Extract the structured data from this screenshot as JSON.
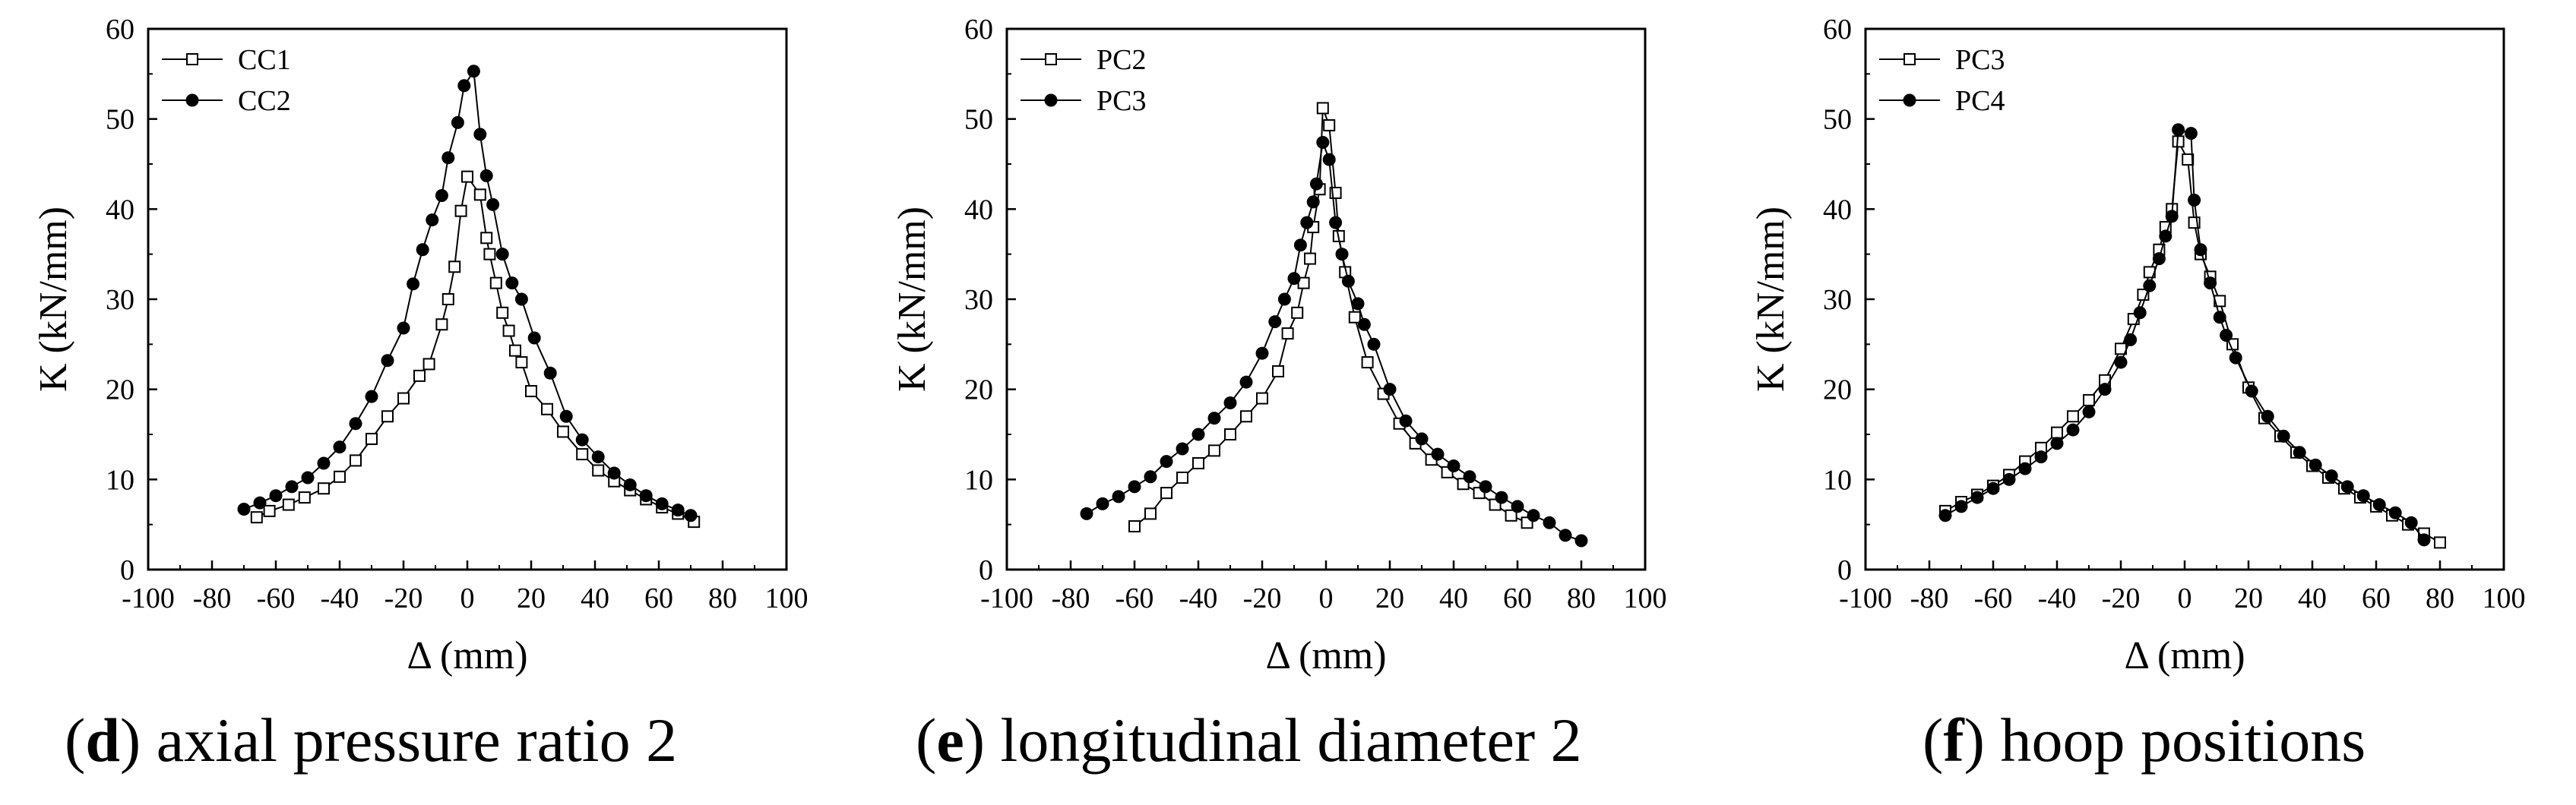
{
  "panels": [
    {
      "caption": {
        "letter": "d",
        "text": "axial pressure ratio 2"
      },
      "chart_data": {
        "type": "scatter",
        "title": "",
        "xlabel": "Δ (mm)",
        "ylabel": "K (kN/mm)",
        "xlim": [
          -100,
          100
        ],
        "ylim": [
          0,
          60
        ],
        "xticks": [
          -100,
          -80,
          -60,
          -40,
          -20,
          0,
          20,
          40,
          60,
          80,
          100
        ],
        "yticks": [
          0,
          10,
          20,
          30,
          40,
          50,
          60
        ],
        "legend_position": "top-left",
        "series": [
          {
            "name": "CC1",
            "marker": "open-square",
            "points": [
              [
                -66,
                5.8
              ],
              [
                -62,
                6.5
              ],
              [
                -56,
                7.2
              ],
              [
                -51,
                8.0
              ],
              [
                -45,
                9.0
              ],
              [
                -40,
                10.3
              ],
              [
                -35,
                12.1
              ],
              [
                -30,
                14.5
              ],
              [
                -25,
                17.0
              ],
              [
                -20,
                19.0
              ],
              [
                -15,
                21.5
              ],
              [
                -12,
                22.8
              ],
              [
                -8,
                27.2
              ],
              [
                -6,
                30.0
              ],
              [
                -4,
                33.6
              ],
              [
                -2,
                39.8
              ],
              [
                0,
                43.6
              ],
              [
                4,
                41.6
              ],
              [
                6,
                36.8
              ],
              [
                7,
                35.0
              ],
              [
                9,
                31.8
              ],
              [
                11,
                28.5
              ],
              [
                13,
                26.5
              ],
              [
                15,
                24.3
              ],
              [
                17,
                23.0
              ],
              [
                20,
                19.8
              ],
              [
                25,
                17.8
              ],
              [
                30,
                15.3
              ],
              [
                36,
                12.8
              ],
              [
                41,
                11.0
              ],
              [
                46,
                9.8
              ],
              [
                51,
                8.8
              ],
              [
                56,
                7.8
              ],
              [
                61,
                6.9
              ],
              [
                66,
                6.2
              ],
              [
                71,
                5.3
              ]
            ]
          },
          {
            "name": "CC2",
            "marker": "filled-circle",
            "points": [
              [
                -70,
                6.7
              ],
              [
                -65,
                7.4
              ],
              [
                -60,
                8.2
              ],
              [
                -55,
                9.2
              ],
              [
                -50,
                10.2
              ],
              [
                -45,
                11.8
              ],
              [
                -40,
                13.6
              ],
              [
                -35,
                16.2
              ],
              [
                -30,
                19.2
              ],
              [
                -25,
                23.2
              ],
              [
                -20,
                26.8
              ],
              [
                -17,
                31.7
              ],
              [
                -14,
                35.5
              ],
              [
                -11,
                38.8
              ],
              [
                -8,
                41.5
              ],
              [
                -6,
                45.7
              ],
              [
                -3,
                49.6
              ],
              [
                -1,
                53.7
              ],
              [
                2,
                55.3
              ],
              [
                4,
                48.3
              ],
              [
                6,
                43.7
              ],
              [
                8,
                40.5
              ],
              [
                11,
                35.0
              ],
              [
                14,
                31.8
              ],
              [
                17,
                30.0
              ],
              [
                21,
                25.7
              ],
              [
                26,
                21.8
              ],
              [
                31,
                17.0
              ],
              [
                36,
                14.4
              ],
              [
                41,
                12.5
              ],
              [
                46,
                10.7
              ],
              [
                51,
                9.4
              ],
              [
                56,
                8.2
              ],
              [
                61,
                7.3
              ],
              [
                66,
                6.6
              ],
              [
                70,
                6.0
              ]
            ]
          }
        ]
      }
    },
    {
      "caption": {
        "letter": "e",
        "text": "longitudinal diameter 2"
      },
      "chart_data": {
        "type": "scatter",
        "title": "",
        "xlabel": "Δ (mm)",
        "ylabel": "K (kN/mm)",
        "xlim": [
          -100,
          100
        ],
        "ylim": [
          0,
          60
        ],
        "xticks": [
          -100,
          -80,
          -60,
          -40,
          -20,
          0,
          20,
          40,
          60,
          80,
          100
        ],
        "yticks": [
          0,
          10,
          20,
          30,
          40,
          50,
          60
        ],
        "legend_position": "top-left",
        "series": [
          {
            "name": "PC2",
            "marker": "open-square",
            "points": [
              [
                -60,
                4.8
              ],
              [
                -55,
                6.2
              ],
              [
                -50,
                8.5
              ],
              [
                -45,
                10.2
              ],
              [
                -40,
                11.8
              ],
              [
                -35,
                13.2
              ],
              [
                -30,
                15.0
              ],
              [
                -25,
                17.0
              ],
              [
                -20,
                19.0
              ],
              [
                -15,
                22.0
              ],
              [
                -12,
                26.2
              ],
              [
                -9,
                28.5
              ],
              [
                -7,
                31.8
              ],
              [
                -5,
                34.5
              ],
              [
                -4,
                38.0
              ],
              [
                -2,
                42.2
              ],
              [
                -1,
                51.2
              ],
              [
                1,
                49.3
              ],
              [
                3,
                41.8
              ],
              [
                4,
                37.0
              ],
              [
                6,
                33.0
              ],
              [
                9,
                28.0
              ],
              [
                13,
                23.0
              ],
              [
                18,
                19.5
              ],
              [
                23,
                16.2
              ],
              [
                28,
                14.0
              ],
              [
                33,
                12.2
              ],
              [
                38,
                10.8
              ],
              [
                43,
                9.5
              ],
              [
                48,
                8.5
              ],
              [
                53,
                7.2
              ],
              [
                58,
                6.0
              ],
              [
                63,
                5.2
              ]
            ]
          },
          {
            "name": "PC3",
            "marker": "filled-circle",
            "points": [
              [
                -75,
                6.2
              ],
              [
                -70,
                7.3
              ],
              [
                -65,
                8.1
              ],
              [
                -60,
                9.2
              ],
              [
                -55,
                10.3
              ],
              [
                -50,
                12.0
              ],
              [
                -45,
                13.4
              ],
              [
                -40,
                15.0
              ],
              [
                -35,
                16.8
              ],
              [
                -30,
                18.5
              ],
              [
                -25,
                20.8
              ],
              [
                -20,
                24.0
              ],
              [
                -16,
                27.5
              ],
              [
                -13,
                30.0
              ],
              [
                -10,
                32.3
              ],
              [
                -8,
                36.0
              ],
              [
                -6,
                38.5
              ],
              [
                -4,
                40.8
              ],
              [
                -3,
                42.8
              ],
              [
                -1,
                47.4
              ],
              [
                1,
                45.5
              ],
              [
                3,
                38.5
              ],
              [
                5,
                35.0
              ],
              [
                7,
                32.0
              ],
              [
                10,
                29.5
              ],
              [
                12,
                27.2
              ],
              [
                15,
                25.0
              ],
              [
                20,
                20.0
              ],
              [
                25,
                16.5
              ],
              [
                30,
                14.5
              ],
              [
                35,
                12.8
              ],
              [
                40,
                11.5
              ],
              [
                45,
                10.3
              ],
              [
                50,
                9.2
              ],
              [
                55,
                8.0
              ],
              [
                60,
                7.0
              ],
              [
                65,
                6.0
              ],
              [
                70,
                5.2
              ],
              [
                75,
                3.8
              ],
              [
                80,
                3.2
              ]
            ]
          }
        ]
      }
    },
    {
      "caption": {
        "letter": "f",
        "text": "hoop positions"
      },
      "chart_data": {
        "type": "scatter",
        "title": "",
        "xlabel": "Δ (mm)",
        "ylabel": "K (kN/mm)",
        "xlim": [
          -100,
          100
        ],
        "ylim": [
          0,
          60
        ],
        "xticks": [
          -100,
          -80,
          -60,
          -40,
          -20,
          0,
          20,
          40,
          60,
          80,
          100
        ],
        "yticks": [
          0,
          10,
          20,
          30,
          40,
          50,
          60
        ],
        "legend_position": "top-left",
        "series": [
          {
            "name": "PC3",
            "marker": "open-square",
            "points": [
              [
                -75,
                6.5
              ],
              [
                -70,
                7.5
              ],
              [
                -65,
                8.3
              ],
              [
                -60,
                9.3
              ],
              [
                -55,
                10.5
              ],
              [
                -50,
                12.0
              ],
              [
                -45,
                13.5
              ],
              [
                -40,
                15.2
              ],
              [
                -35,
                17.0
              ],
              [
                -30,
                18.8
              ],
              [
                -25,
                21.0
              ],
              [
                -20,
                24.5
              ],
              [
                -16,
                27.8
              ],
              [
                -13,
                30.5
              ],
              [
                -11,
                33.0
              ],
              [
                -8,
                35.5
              ],
              [
                -6,
                38.0
              ],
              [
                -4,
                40.0
              ],
              [
                -2,
                47.5
              ],
              [
                1,
                45.5
              ],
              [
                3,
                38.5
              ],
              [
                5,
                35.0
              ],
              [
                8,
                32.5
              ],
              [
                11,
                29.8
              ],
              [
                15,
                25.0
              ],
              [
                20,
                20.2
              ],
              [
                25,
                16.8
              ],
              [
                30,
                14.8
              ],
              [
                35,
                13.0
              ],
              [
                40,
                11.5
              ],
              [
                45,
                10.2
              ],
              [
                50,
                9.0
              ],
              [
                55,
                8.0
              ],
              [
                60,
                7.0
              ],
              [
                65,
                6.0
              ],
              [
                70,
                5.0
              ],
              [
                75,
                4.0
              ],
              [
                80,
                3.0
              ]
            ]
          },
          {
            "name": "PC4",
            "marker": "filled-circle",
            "points": [
              [
                -75,
                6.0
              ],
              [
                -70,
                7.0
              ],
              [
                -65,
                8.0
              ],
              [
                -60,
                9.0
              ],
              [
                -55,
                10.0
              ],
              [
                -50,
                11.2
              ],
              [
                -45,
                12.5
              ],
              [
                -40,
                14.0
              ],
              [
                -35,
                15.5
              ],
              [
                -30,
                17.5
              ],
              [
                -25,
                20.0
              ],
              [
                -20,
                23.0
              ],
              [
                -17,
                25.5
              ],
              [
                -14,
                28.5
              ],
              [
                -11,
                31.5
              ],
              [
                -8,
                34.5
              ],
              [
                -6,
                37.0
              ],
              [
                -4,
                39.2
              ],
              [
                -2,
                48.8
              ],
              [
                2,
                48.4
              ],
              [
                3,
                41.0
              ],
              [
                5,
                35.5
              ],
              [
                8,
                31.8
              ],
              [
                11,
                28.0
              ],
              [
                13,
                26.0
              ],
              [
                16,
                23.5
              ],
              [
                21,
                19.8
              ],
              [
                26,
                17.0
              ],
              [
                31,
                14.8
              ],
              [
                36,
                13.0
              ],
              [
                41,
                11.6
              ],
              [
                46,
                10.4
              ],
              [
                51,
                9.2
              ],
              [
                56,
                8.2
              ],
              [
                61,
                7.2
              ],
              [
                66,
                6.3
              ],
              [
                71,
                5.2
              ],
              [
                75,
                3.3
              ]
            ]
          }
        ]
      }
    }
  ]
}
